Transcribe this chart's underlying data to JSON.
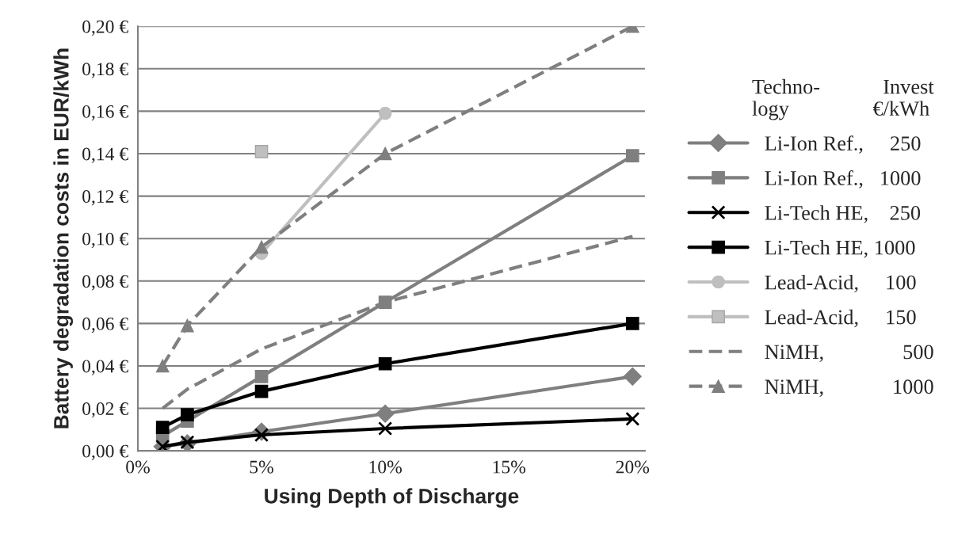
{
  "chart_data": {
    "type": "line",
    "xlabel": "Using Depth of Discharge",
    "ylabel": "Battery degradation costs in EUR/kWh",
    "legend_title": "Techno-            Invest\nlogy                €/kWh",
    "x": [
      1,
      2,
      5,
      10,
      20
    ],
    "xlim": [
      0,
      20.5
    ],
    "xticks": [
      {
        "value": 0,
        "label": "0%"
      },
      {
        "value": 5,
        "label": "5%"
      },
      {
        "value": 10,
        "label": "10%"
      },
      {
        "value": 15,
        "label": "15%"
      },
      {
        "value": 20,
        "label": "20%"
      }
    ],
    "ylim": [
      0,
      0.2
    ],
    "yticks": [
      {
        "value": 0,
        "label": "0,00 €"
      },
      {
        "value": 0.02,
        "label": "0,02 €"
      },
      {
        "value": 0.04,
        "label": "0,04 €"
      },
      {
        "value": 0.06,
        "label": "0,06 €"
      },
      {
        "value": 0.08,
        "label": "0,08 €"
      },
      {
        "value": 0.1,
        "label": "0,10 €"
      },
      {
        "value": 0.12,
        "label": "0,12 €"
      },
      {
        "value": 0.14,
        "label": "0,14 €"
      },
      {
        "value": 0.16,
        "label": "0,16 €"
      },
      {
        "value": 0.18,
        "label": "0,18 €"
      },
      {
        "value": 0.2,
        "label": "0,20 €"
      }
    ],
    "grid": "y",
    "legend": "right",
    "series": [
      {
        "name": "Li-Ion Ref.,     250",
        "color": "#7f7f7f",
        "marker": "diamond",
        "line_style": "solid",
        "values": [
          0.002,
          0.0035,
          0.009,
          0.0175,
          0.035
        ]
      },
      {
        "name": "Li-Ion Ref.,   1000",
        "color": "#7f7f7f",
        "marker": "square",
        "line_style": "solid",
        "values": [
          0.007,
          0.014,
          0.035,
          0.07,
          0.139
        ]
      },
      {
        "name": "Li-Tech HE,    250",
        "color": "#000000",
        "marker": "cross",
        "line_style": "solid",
        "values": [
          0.002,
          0.004,
          0.0075,
          0.0105,
          0.015
        ]
      },
      {
        "name": "Li-Tech HE, 1000",
        "color": "#000000",
        "marker": "square",
        "line_style": "solid",
        "values": [
          0.011,
          0.017,
          0.028,
          0.041,
          0.06
        ]
      },
      {
        "name": "Lead-Acid,     100",
        "color": "#bfbfbf",
        "marker": "circle",
        "line_style": "solid",
        "values": [
          null,
          null,
          0.093,
          0.159,
          null
        ]
      },
      {
        "name": "Lead-Acid,     150",
        "color": "#bfbfbf",
        "marker": "square",
        "line_style": "solid",
        "values": [
          null,
          null,
          0.141,
          null,
          null
        ]
      },
      {
        "name": "NiMH,               500",
        "color": "#7f7f7f",
        "marker": "none",
        "line_style": "dashed",
        "values": [
          0.02,
          0.029,
          0.048,
          0.07,
          0.101
        ]
      },
      {
        "name": "NiMH,             1000",
        "color": "#7f7f7f",
        "marker": "triangle",
        "line_style": "dashed",
        "values": [
          0.04,
          0.059,
          0.096,
          0.14,
          0.2
        ]
      }
    ]
  }
}
